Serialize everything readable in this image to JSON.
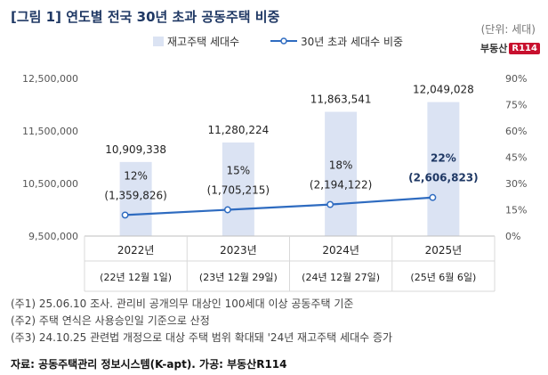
{
  "header": {
    "title": "[그림 1] 연도별 전국 30년 초과 공동주택 비중",
    "unit": "(단위: 세대)"
  },
  "logo": {
    "text": "부동산",
    "badge": "R114"
  },
  "chart_data": {
    "type": "bar",
    "categories": [
      "2022년",
      "2023년",
      "2024년",
      "2025년"
    ],
    "subcategories": [
      "(22년 12월 1일)",
      "(23년 12월 29일)",
      "(24년 12월 27일)",
      "(25년 6월 6일)"
    ],
    "series": [
      {
        "name": "재고주택 세대수",
        "type": "bar",
        "axis": "left",
        "values": [
          10909338,
          11280224,
          11863541,
          12049028
        ],
        "labels": [
          "10,909,338",
          "11,280,224",
          "11,863,541",
          "12,049,028"
        ]
      },
      {
        "name": "30년 초과 세대수 비중",
        "type": "line",
        "axis": "right",
        "values": [
          12,
          15,
          18,
          22
        ],
        "pct_labels": [
          "12%",
          "15%",
          "18%",
          "22%"
        ],
        "count_labels": [
          "(1,359,826)",
          "(1,705,215)",
          "(2,194,122)",
          "(2,606,823)"
        ]
      }
    ],
    "left_axis": {
      "ylim": [
        9500000,
        12500000
      ],
      "ticks": [
        "9,500,000",
        "10,500,000",
        "11,500,000",
        "12,500,000"
      ],
      "tick_values": [
        9500000,
        10500000,
        11500000,
        12500000
      ]
    },
    "right_axis": {
      "ylim": [
        0,
        90
      ],
      "ticks": [
        "0%",
        "15%",
        "30%",
        "45%",
        "60%",
        "75%",
        "90%"
      ],
      "tick_values": [
        0,
        15,
        30,
        45,
        60,
        75,
        90
      ]
    },
    "legend_placement": "top-center",
    "colors": {
      "bar": "#dbe3f3",
      "line": "#2e6bc0",
      "highlight_label": "#1f3864"
    }
  },
  "notes": [
    "(주1) 25.06.10 조사. 관리비 공개의무 대상인 100세대 이상 공동주택 기준",
    "(주2) 주택 연식은 사용승인일 기준으로 산정",
    "(주3) 24.10.25 관련법 개정으로 대상 주택 범위 확대돼 '24년 재고주택 세대수 증가"
  ],
  "source": "자료: 공동주택관리 정보시스템(K-apt). 가공: 부동산R114"
}
